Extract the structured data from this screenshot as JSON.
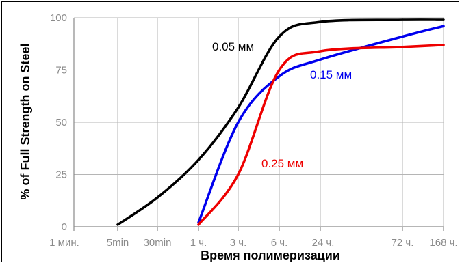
{
  "chart_data": {
    "type": "line",
    "title": "",
    "xlabel": "Время полимеризации",
    "ylabel": "% of Full Strength on Steel",
    "ylim": [
      0,
      100
    ],
    "x_scale": "categorical-time",
    "x_ticks": [
      "1 мин.",
      "5min",
      "30min",
      "1 ч.",
      "3 ч.",
      "6 ч.",
      "24 ч.",
      "72 ч.",
      "168 ч."
    ],
    "y_ticks": [
      0,
      25,
      50,
      75,
      100
    ],
    "grid": true,
    "series": [
      {
        "name": "0.05 мм",
        "color": "#000000",
        "points": [
          {
            "x": "5min",
            "y": 1
          },
          {
            "x": "30min",
            "y": 14
          },
          {
            "x": "1 ч.",
            "y": 32
          },
          {
            "x": "3 ч.",
            "y": 57
          },
          {
            "x": "6 ч.",
            "y": 91
          },
          {
            "x": "24 ч.",
            "y": 98
          },
          {
            "x": "72 ч.",
            "y": 99
          },
          {
            "x": "168 ч.",
            "y": 99
          }
        ]
      },
      {
        "name": "0.15 мм",
        "color": "#0000ee",
        "points": [
          {
            "x": "1 ч.",
            "y": 2
          },
          {
            "x": "3 ч.",
            "y": 50
          },
          {
            "x": "6 ч.",
            "y": 72
          },
          {
            "x": "24 ч.",
            "y": 80
          },
          {
            "x": "72 ч.",
            "y": 91
          },
          {
            "x": "168 ч.",
            "y": 96
          }
        ]
      },
      {
        "name": "0.25 мм",
        "color": "#ee0000",
        "points": [
          {
            "x": "1 ч.",
            "y": 1
          },
          {
            "x": "3 ч.",
            "y": 25
          },
          {
            "x": "6 ч.",
            "y": 75
          },
          {
            "x": "24 ч.",
            "y": 84
          },
          {
            "x": "72 ч.",
            "y": 86
          },
          {
            "x": "168 ч.",
            "y": 87
          }
        ]
      }
    ]
  }
}
